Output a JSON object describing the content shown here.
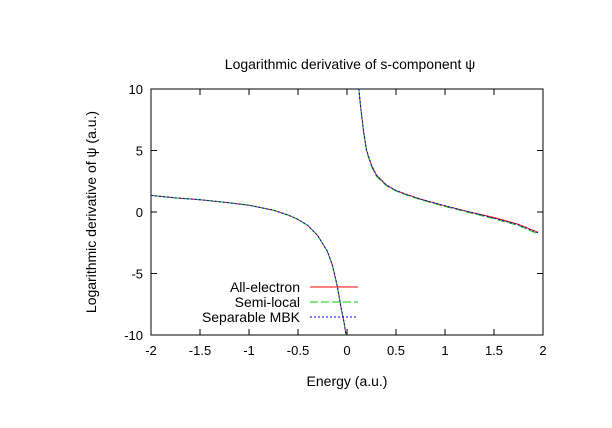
{
  "chart_data": {
    "type": "line",
    "title": "Logarithmic derivative of s-component ψ",
    "xlabel": "Energy (a.u.)",
    "ylabel": "Logarithmic derivative of ψ (a.u.)",
    "xlim": [
      -2,
      2
    ],
    "ylim": [
      -10,
      10
    ],
    "xticks": [
      "-2",
      "-1.5",
      "-1",
      "-0.5",
      "0",
      "0.5",
      "1",
      "1.5",
      "2"
    ],
    "yticks": [
      "10",
      "5",
      "0",
      "-5",
      "-10"
    ],
    "legend_position": "bottom-left",
    "grid": false,
    "series": [
      {
        "name": "All-electron",
        "color": "#ff0000",
        "dash": "solid",
        "segments": [
          [
            [
              -2.0,
              1.35
            ],
            [
              -1.75,
              1.15
            ],
            [
              -1.5,
              1.0
            ],
            [
              -1.25,
              0.8
            ],
            [
              -1.0,
              0.55
            ],
            [
              -0.75,
              0.15
            ],
            [
              -0.6,
              -0.25
            ],
            [
              -0.5,
              -0.6
            ],
            [
              -0.4,
              -1.1
            ],
            [
              -0.3,
              -1.9
            ],
            [
              -0.2,
              -3.2
            ],
            [
              -0.15,
              -4.3
            ],
            [
              -0.1,
              -6.0
            ],
            [
              -0.06,
              -7.8
            ],
            [
              -0.03,
              -9.0
            ],
            [
              -0.01,
              -10.0
            ]
          ],
          [
            [
              0.12,
              10.0
            ],
            [
              0.14,
              8.5
            ],
            [
              0.17,
              6.5
            ],
            [
              0.2,
              5.0
            ],
            [
              0.25,
              3.8
            ],
            [
              0.3,
              3.0
            ],
            [
              0.4,
              2.2
            ],
            [
              0.5,
              1.75
            ],
            [
              0.6,
              1.45
            ],
            [
              0.75,
              1.05
            ],
            [
              1.0,
              0.5
            ],
            [
              1.25,
              0.0
            ],
            [
              1.5,
              -0.45
            ],
            [
              1.75,
              -1.0
            ],
            [
              1.95,
              -1.65
            ]
          ]
        ]
      },
      {
        "name": "Semi-local",
        "color": "#00cc00",
        "dash": "8,3",
        "segments": [
          [
            [
              -2.0,
              1.35
            ],
            [
              -1.75,
              1.15
            ],
            [
              -1.5,
              1.0
            ],
            [
              -1.25,
              0.8
            ],
            [
              -1.0,
              0.55
            ],
            [
              -0.75,
              0.15
            ],
            [
              -0.6,
              -0.25
            ],
            [
              -0.5,
              -0.6
            ],
            [
              -0.4,
              -1.1
            ],
            [
              -0.3,
              -1.9
            ],
            [
              -0.2,
              -3.2
            ],
            [
              -0.15,
              -4.3
            ],
            [
              -0.1,
              -6.0
            ],
            [
              -0.06,
              -7.8
            ],
            [
              -0.03,
              -9.0
            ],
            [
              -0.01,
              -10.0
            ]
          ],
          [
            [
              0.12,
              10.0
            ],
            [
              0.14,
              8.5
            ],
            [
              0.17,
              6.4
            ],
            [
              0.2,
              4.9
            ],
            [
              0.25,
              3.7
            ],
            [
              0.3,
              2.9
            ],
            [
              0.4,
              2.15
            ],
            [
              0.5,
              1.7
            ],
            [
              0.6,
              1.4
            ],
            [
              0.75,
              1.0
            ],
            [
              1.0,
              0.45
            ],
            [
              1.25,
              -0.05
            ],
            [
              1.5,
              -0.55
            ],
            [
              1.75,
              -1.1
            ],
            [
              1.95,
              -1.8
            ]
          ]
        ]
      },
      {
        "name": "Separable MBK",
        "color": "#0000ff",
        "dash": "2,2",
        "segments": [
          [
            [
              -2.0,
              1.35
            ],
            [
              -1.75,
              1.15
            ],
            [
              -1.5,
              1.0
            ],
            [
              -1.25,
              0.8
            ],
            [
              -1.0,
              0.55
            ],
            [
              -0.75,
              0.15
            ],
            [
              -0.6,
              -0.25
            ],
            [
              -0.5,
              -0.6
            ],
            [
              -0.4,
              -1.1
            ],
            [
              -0.3,
              -1.9
            ],
            [
              -0.2,
              -3.2
            ],
            [
              -0.15,
              -4.3
            ],
            [
              -0.1,
              -6.0
            ],
            [
              -0.06,
              -7.8
            ],
            [
              -0.03,
              -9.0
            ],
            [
              -0.01,
              -10.0
            ]
          ],
          [
            [
              0.12,
              10.0
            ],
            [
              0.14,
              8.5
            ],
            [
              0.17,
              6.5
            ],
            [
              0.2,
              5.0
            ],
            [
              0.25,
              3.8
            ],
            [
              0.3,
              3.0
            ],
            [
              0.4,
              2.2
            ],
            [
              0.5,
              1.75
            ],
            [
              0.6,
              1.45
            ],
            [
              0.75,
              1.05
            ],
            [
              1.0,
              0.5
            ],
            [
              1.25,
              0.0
            ],
            [
              1.5,
              -0.5
            ],
            [
              1.75,
              -1.05
            ],
            [
              1.95,
              -1.7
            ]
          ]
        ]
      }
    ]
  }
}
